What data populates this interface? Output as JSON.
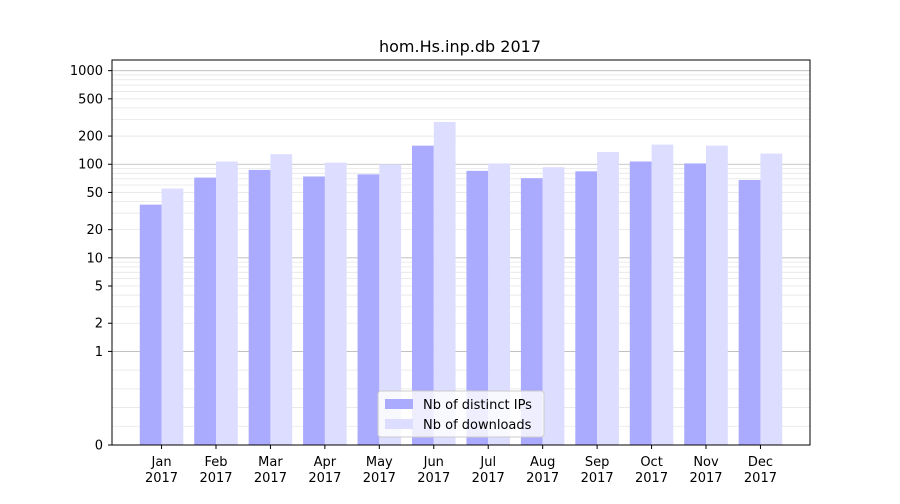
{
  "chart_data": {
    "type": "bar",
    "title": "hom.Hs.inp.db 2017",
    "xlabel": "",
    "ylabel": "",
    "yscale": "symlog",
    "ylim": [
      0,
      1300
    ],
    "yticks": [
      0,
      1,
      2,
      5,
      10,
      20,
      50,
      100,
      200,
      500,
      1000
    ],
    "grid": true,
    "legend_position": "lower-center",
    "categories": [
      "Jan\n2017",
      "Feb\n2017",
      "Mar\n2017",
      "Apr\n2017",
      "May\n2017",
      "Jun\n2017",
      "Jul\n2017",
      "Aug\n2017",
      "Sep\n2017",
      "Oct\n2017",
      "Nov\n2017",
      "Dec\n2017"
    ],
    "series": [
      {
        "name": "Nb of distinct IPs",
        "color": "#aaaaff",
        "values": [
          37,
          72,
          87,
          74,
          78,
          158,
          85,
          71,
          84,
          107,
          102,
          68
        ]
      },
      {
        "name": "Nb of downloads",
        "color": "#ddddff",
        "values": [
          55,
          107,
          128,
          104,
          100,
          283,
          102,
          93,
          135,
          162,
          158,
          130
        ]
      }
    ]
  }
}
